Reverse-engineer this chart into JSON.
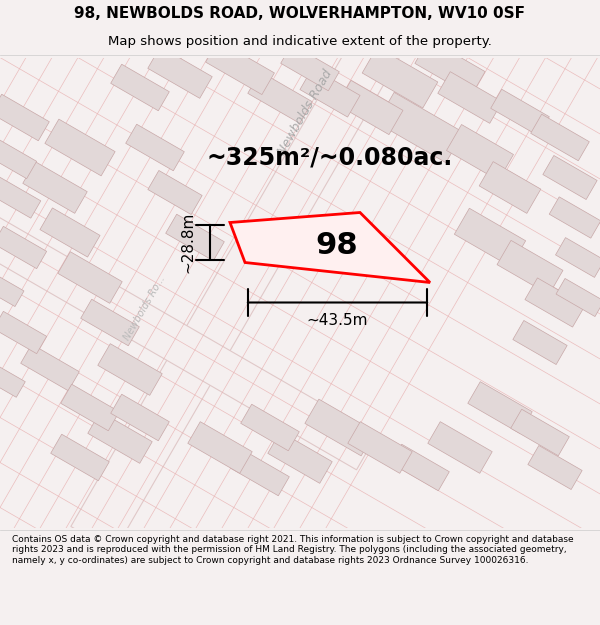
{
  "title_line1": "98, NEWBOLDS ROAD, WOLVERHAMPTON, WV10 0SF",
  "title_line2": "Map shows position and indicative extent of the property.",
  "area_text": "~325m²/~0.080ac.",
  "label_98": "98",
  "dim_width": "~43.5m",
  "dim_height": "~28.8m",
  "road_label_upper": "Newbolds Road",
  "road_label_lower": "Newbolds Ro...",
  "footer_text": "Contains OS data © Crown copyright and database right 2021. This information is subject to Crown copyright and database rights 2023 and is reproduced with the permission of HM Land Registry. The polygons (including the associated geometry, namely x, y co-ordinates) are subject to Crown copyright and database rights 2023 Ordnance Survey 100026316.",
  "bg_color": "#f5f0f0",
  "map_bg": "#f8f4f4",
  "building_fill": "#e8e0e0",
  "building_edge": "#d4b8b8",
  "road_color": "#ffffff",
  "road_edge": "#c8a0a0",
  "highlight_color": "#ff0000",
  "highlight_fill": "#fff0f0",
  "footer_bg": "#ffffff",
  "title_bg": "#ffffff"
}
